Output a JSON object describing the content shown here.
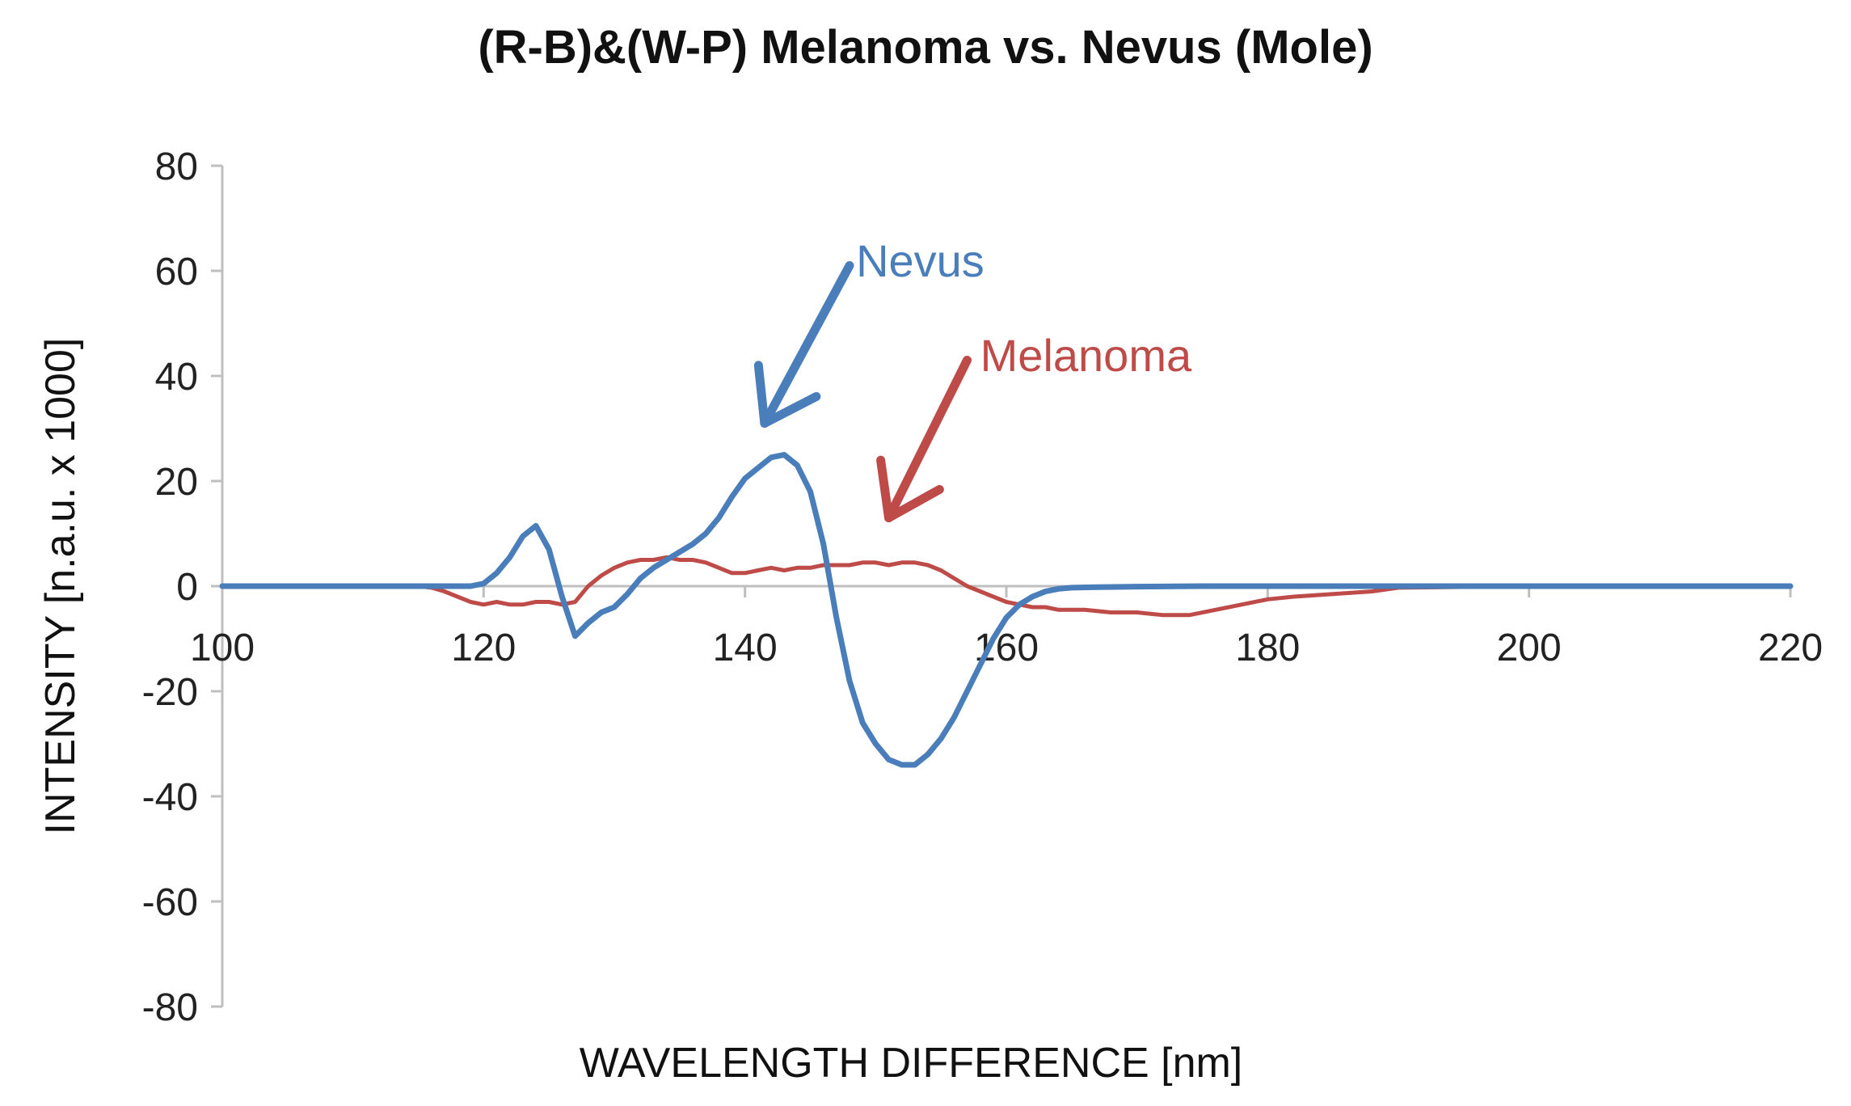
{
  "chart_data": {
    "type": "line",
    "title": "(R-B)&(W-P) Melanoma vs. Nevus (Mole)",
    "xlabel": "WAVELENGTH DIFFERENCE [nm]",
    "ylabel": "INTENSITY [n.a.u. x 1000]",
    "xlim": [
      100,
      220
    ],
    "ylim": [
      -80,
      80
    ],
    "xticks": [
      100,
      120,
      140,
      160,
      180,
      200,
      220
    ],
    "yticks": [
      80,
      60,
      40,
      20,
      0,
      -20,
      -40,
      -60,
      -80
    ],
    "grid": false,
    "colors": {
      "Nevus": "#4a7ebb",
      "Melanoma": "#be4b48"
    },
    "series": [
      {
        "name": "Nevus",
        "x": [
          100,
          115,
          119,
          120,
          121,
          122,
          123,
          124,
          125,
          126,
          127,
          128,
          129,
          130,
          131,
          132,
          133,
          134,
          135,
          136,
          137,
          138,
          139,
          140,
          141,
          142,
          143,
          144,
          145,
          146,
          147,
          148,
          149,
          150,
          151,
          152,
          153,
          154,
          155,
          156,
          157,
          158,
          159,
          160,
          161,
          162,
          163,
          164,
          165,
          167,
          170,
          175,
          180,
          190,
          200,
          220
        ],
        "values": [
          0,
          0,
          0,
          0.5,
          2.5,
          5.5,
          9.5,
          11.5,
          7,
          -2,
          -9.5,
          -7,
          -5,
          -4,
          -1.5,
          1.5,
          3.5,
          5,
          6.5,
          8,
          10,
          13,
          17,
          20.5,
          22.5,
          24.5,
          25,
          23,
          18,
          8,
          -6,
          -18,
          -26,
          -30,
          -33,
          -34,
          -34,
          -32,
          -29,
          -25,
          -20,
          -15,
          -10,
          -6,
          -3.5,
          -2,
          -1,
          -0.5,
          -0.3,
          -0.2,
          -0.1,
          0,
          0,
          0,
          0,
          0
        ]
      },
      {
        "name": "Melanoma",
        "x": [
          100,
          115,
          116,
          117,
          118,
          119,
          120,
          121,
          122,
          123,
          124,
          125,
          126,
          127,
          128,
          129,
          130,
          131,
          132,
          133,
          134,
          135,
          136,
          137,
          138,
          139,
          140,
          141,
          142,
          143,
          144,
          145,
          146,
          147,
          148,
          149,
          150,
          151,
          152,
          153,
          154,
          155,
          156,
          157,
          158,
          159,
          160,
          161,
          162,
          163,
          164,
          166,
          168,
          170,
          172,
          174,
          176,
          178,
          180,
          182,
          185,
          188,
          190,
          200,
          220
        ],
        "values": [
          0,
          0,
          -0.3,
          -1,
          -2,
          -3,
          -3.5,
          -3,
          -3.5,
          -3.5,
          -3,
          -3,
          -3.5,
          -3,
          0,
          2,
          3.5,
          4.5,
          5,
          5,
          5.5,
          5,
          5,
          4.5,
          3.5,
          2.5,
          2.5,
          3,
          3.5,
          3,
          3.5,
          3.5,
          4,
          4,
          4,
          4.5,
          4.5,
          4,
          4.5,
          4.5,
          4,
          3,
          1.5,
          0,
          -1,
          -2,
          -3,
          -3.5,
          -4,
          -4,
          -4.5,
          -4.5,
          -5,
          -5,
          -5.5,
          -5.5,
          -4.5,
          -3.5,
          -2.5,
          -2,
          -1.5,
          -1,
          -0.3,
          0,
          0
        ]
      }
    ],
    "annotations": [
      {
        "text": "Nevus",
        "series": "Nevus",
        "arrow_from": [
          148,
          61
        ],
        "arrow_to": [
          141.5,
          31
        ],
        "label_at": [
          148.5,
          62
        ]
      },
      {
        "text": "Melanoma",
        "series": "Melanoma",
        "arrow_from": [
          157,
          43
        ],
        "arrow_to": [
          151,
          13
        ],
        "label_at": [
          158,
          44
        ]
      }
    ]
  }
}
